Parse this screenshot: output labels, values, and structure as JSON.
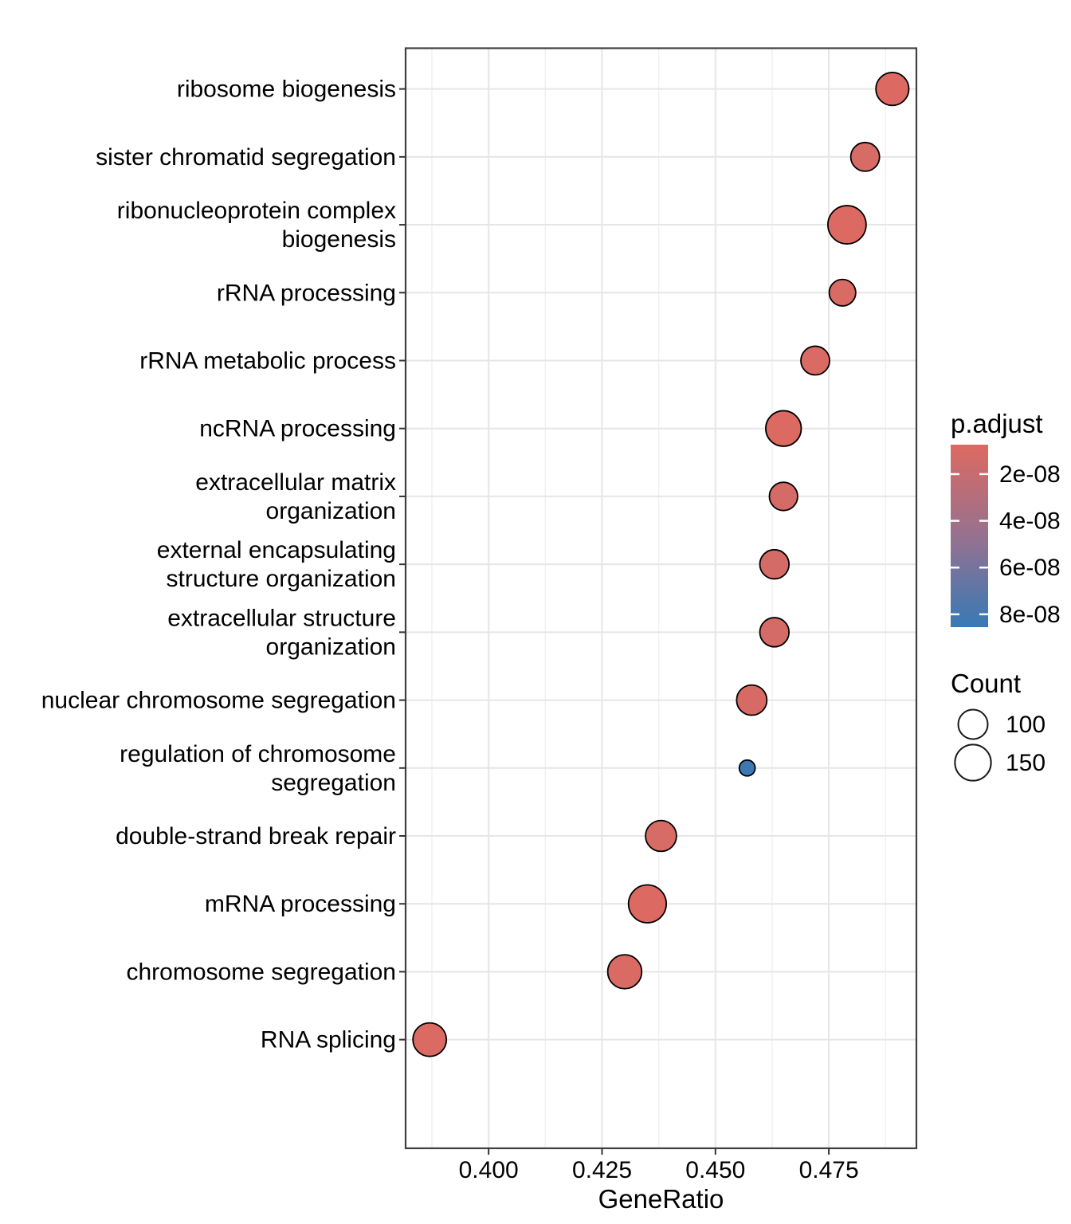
{
  "chart_data": {
    "type": "scatter",
    "subtype": "enrichment-dotplot",
    "title": "",
    "xlabel": "GeneRatio",
    "ylabel": "",
    "grid": true,
    "x_domain": [
      0.3817,
      0.4943
    ],
    "x_ticks": {
      "values": [
        0.4,
        0.425,
        0.45,
        0.475
      ],
      "labels": [
        "0.400",
        "0.425",
        "0.450",
        "0.475"
      ]
    },
    "x_minor_ticks": [
      0.3875,
      0.4125,
      0.4375,
      0.4625,
      0.4875
    ],
    "categories": [
      {
        "label": "ribosome biogenesis",
        "lines": [
          "ribosome biogenesis"
        ]
      },
      {
        "label": "sister chromatid segregation",
        "lines": [
          "sister chromatid segregation"
        ]
      },
      {
        "label": "ribonucleoprotein complex biogenesis",
        "lines": [
          "ribonucleoprotein complex",
          "biogenesis"
        ]
      },
      {
        "label": "rRNA processing",
        "lines": [
          "rRNA processing"
        ]
      },
      {
        "label": "rRNA metabolic process",
        "lines": [
          "rRNA metabolic process"
        ]
      },
      {
        "label": "ncRNA processing",
        "lines": [
          "ncRNA processing"
        ]
      },
      {
        "label": "extracellular matrix organization",
        "lines": [
          "extracellular matrix",
          "organization"
        ]
      },
      {
        "label": "external encapsulating structure organization",
        "lines": [
          "external encapsulating",
          "structure organization"
        ]
      },
      {
        "label": "extracellular structure organization",
        "lines": [
          "extracellular structure",
          "organization"
        ]
      },
      {
        "label": "nuclear chromosome segregation",
        "lines": [
          "nuclear chromosome segregation"
        ]
      },
      {
        "label": "regulation of chromosome segregation",
        "lines": [
          "regulation of chromosome",
          "segregation"
        ]
      },
      {
        "label": "double-strand break repair",
        "lines": [
          "double-strand break repair"
        ]
      },
      {
        "label": "mRNA processing",
        "lines": [
          "mRNA processing"
        ]
      },
      {
        "label": "chromosome segregation",
        "lines": [
          "chromosome segregation"
        ]
      },
      {
        "label": "RNA splicing",
        "lines": [
          "RNA splicing"
        ]
      }
    ],
    "points": [
      {
        "term": "ribosome biogenesis",
        "gene_ratio": 0.489,
        "count": 125,
        "p_adjust": 7.4e-09
      },
      {
        "term": "sister chromatid segregation",
        "gene_ratio": 0.483,
        "count": 95,
        "p_adjust": 1.1e-08
      },
      {
        "term": "ribonucleoprotein complex biogenesis",
        "gene_ratio": 0.479,
        "count": 168,
        "p_adjust": 7.6e-09
      },
      {
        "term": "rRNA processing",
        "gene_ratio": 0.478,
        "count": 81,
        "p_adjust": 9e-09
      },
      {
        "term": "rRNA metabolic process",
        "gene_ratio": 0.472,
        "count": 95,
        "p_adjust": 9.5e-09
      },
      {
        "term": "ncRNA processing",
        "gene_ratio": 0.465,
        "count": 145,
        "p_adjust": 8e-09
      },
      {
        "term": "extracellular matrix organization",
        "gene_ratio": 0.465,
        "count": 92,
        "p_adjust": 1.2e-08
      },
      {
        "term": "external encapsulating structure organization",
        "gene_ratio": 0.463,
        "count": 98,
        "p_adjust": 1.2e-08
      },
      {
        "term": "extracellular structure organization",
        "gene_ratio": 0.463,
        "count": 98,
        "p_adjust": 1.2e-08
      },
      {
        "term": "nuclear chromosome segregation",
        "gene_ratio": 0.458,
        "count": 105,
        "p_adjust": 1e-08
      },
      {
        "term": "regulation of chromosome segregation",
        "gene_ratio": 0.457,
        "count": 29,
        "p_adjust": 8.4e-08
      },
      {
        "term": "double-strand break repair",
        "gene_ratio": 0.438,
        "count": 110,
        "p_adjust": 1.1e-08
      },
      {
        "term": "mRNA processing",
        "gene_ratio": 0.435,
        "count": 164,
        "p_adjust": 8e-09
      },
      {
        "term": "chromosome segregation",
        "gene_ratio": 0.43,
        "count": 133,
        "p_adjust": 9e-09
      },
      {
        "term": "RNA splicing",
        "gene_ratio": 0.387,
        "count": 129,
        "p_adjust": 8.5e-09
      }
    ],
    "legend_p": {
      "title": "p.adjust",
      "domain": [
        7.4e-09,
        8.55e-08
      ],
      "ticks": [
        {
          "value": 2e-08,
          "label": "2e-08"
        },
        {
          "value": 4e-08,
          "label": "4e-08"
        },
        {
          "value": 6e-08,
          "label": "6e-08"
        },
        {
          "value": 8e-08,
          "label": "8e-08"
        }
      ],
      "color_low": "#DD6A62",
      "color_mid": "#97718F",
      "color_high": "#3879B5"
    },
    "legend_count": {
      "title": "Count",
      "entries": [
        {
          "count": 100,
          "label": "100"
        },
        {
          "count": 150,
          "label": "150"
        }
      ],
      "size_ref": {
        "count": 100,
        "radius": 18.5
      }
    },
    "style_colors": {
      "panel_border": "#404040",
      "grid_major": "#e6e6e6",
      "grid_minor": "#f0f0f0",
      "dot_stroke": "#000000",
      "text": "#000000"
    }
  }
}
